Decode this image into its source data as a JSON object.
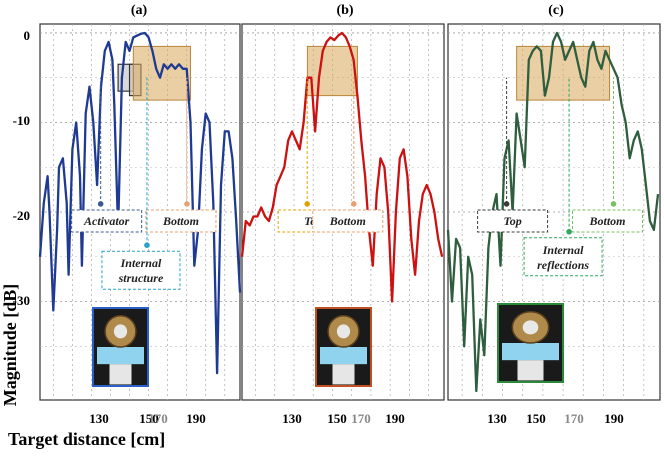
{
  "figure": {
    "ylabel": "Magnitude [dB]",
    "xlabel": "Target distance [cm]",
    "y_ticks": [
      "0",
      "-10",
      "-20",
      "-30"
    ],
    "x_ticks": [
      "130",
      "150",
      "170",
      "190"
    ]
  },
  "chart_data": [
    {
      "type": "line",
      "panel": "(a)",
      "title": "(a)",
      "xlim": [
        113,
        218
      ],
      "ylim": [
        -41,
        1
      ],
      "color": "#1f3a93",
      "grid": true,
      "x": [
        113,
        115,
        117,
        118,
        120,
        122,
        123,
        125,
        127,
        128,
        130,
        132,
        134,
        135,
        137,
        139,
        141,
        143,
        145,
        147,
        149,
        151,
        152,
        154,
        156,
        157,
        158,
        160,
        162,
        164,
        166,
        168,
        170,
        172,
        174,
        176,
        178,
        180,
        182,
        184,
        186,
        188,
        190,
        192,
        194,
        196,
        198,
        200,
        202,
        204,
        206,
        208,
        210,
        212,
        214,
        216,
        218
      ],
      "y": [
        -25,
        -19,
        -16,
        -20,
        -31,
        -22,
        -15,
        -14,
        -19,
        -27,
        -13,
        -10,
        -16,
        -26,
        -9,
        -6,
        -10,
        -17,
        -6,
        -2,
        -1,
        -3,
        -8,
        -22,
        -5,
        -3,
        -1,
        -2,
        -0.5,
        -0.3,
        -0.1,
        0,
        -0.5,
        -2,
        -4,
        -5,
        -3.5,
        -4,
        -3.5,
        -4,
        -3.5,
        -4,
        -4,
        -10,
        -26,
        -22,
        -13,
        -9,
        -10,
        -19,
        -38,
        -17,
        -11,
        -11,
        -14,
        -21,
        -29
      ],
      "shaded_regions": [
        [
          154,
          162,
          -3.5,
          -6.5
        ],
        [
          160,
          166,
          -3.5,
          -7
        ],
        [
          162,
          192,
          -1.5,
          -7.5
        ]
      ],
      "annotations": [
        {
          "label": "Activator",
          "x": 148,
          "y": -21
        },
        {
          "label": "Bottom",
          "x": 187,
          "y": -21
        },
        {
          "label": "Internal structure",
          "x": 166,
          "y": -26.5
        }
      ]
    },
    {
      "type": "line",
      "panel": "(b)",
      "title": "(b)",
      "xlim": [
        113,
        218
      ],
      "ylim": [
        -41,
        1
      ],
      "color": "#cc1111",
      "grid": true,
      "x": [
        113,
        115,
        117,
        119,
        121,
        123,
        125,
        127,
        129,
        131,
        133,
        135,
        137,
        139,
        141,
        143,
        145,
        147,
        149,
        151,
        153,
        155,
        157,
        159,
        161,
        163,
        165,
        167,
        169,
        171,
        173,
        175,
        177,
        179,
        181,
        183,
        185,
        187,
        189,
        191,
        193,
        195,
        197,
        199,
        201,
        203,
        205,
        207,
        209,
        211,
        213,
        215,
        217
      ],
      "y": [
        -25,
        -21,
        -21.5,
        -20.5,
        -20.5,
        -19.5,
        -20.5,
        -21,
        -19.5,
        -17,
        -16,
        -15,
        -12,
        -11,
        -12,
        -13,
        -10,
        -5,
        -5,
        -11,
        -5,
        -2,
        -1,
        -0.5,
        -0.8,
        -0.3,
        0,
        -0.5,
        -1.5,
        -3,
        -7,
        -12,
        -16,
        -22,
        -26,
        -18,
        -14,
        -15,
        -20,
        -30,
        -20,
        -14,
        -13,
        -16,
        -23,
        -27,
        -21,
        -18,
        -17,
        -18,
        -20,
        -23,
        -25
      ],
      "shaded_regions": [
        [
          147,
          173,
          -1.5,
          -7
        ]
      ],
      "annotations": [
        {
          "label": "Top",
          "x": 150,
          "y": -21
        },
        {
          "label": "Bottom",
          "x": 168,
          "y": -21
        }
      ]
    },
    {
      "type": "line",
      "panel": "(c)",
      "title": "(c)",
      "xlim": [
        113,
        218
      ],
      "ylim": [
        -41,
        1
      ],
      "color": "#2e5e3e",
      "grid": true,
      "x": [
        113,
        115,
        117,
        119,
        121,
        123,
        125,
        127,
        129,
        131,
        133,
        135,
        137,
        139,
        141,
        143,
        145,
        147,
        149,
        151,
        153,
        155,
        157,
        159,
        161,
        163,
        165,
        167,
        169,
        171,
        173,
        175,
        177,
        179,
        181,
        183,
        185,
        187,
        189,
        191,
        193,
        195,
        197,
        199,
        201,
        203,
        205,
        207,
        209,
        211,
        213,
        215,
        217
      ],
      "y": [
        -22,
        -30,
        -23,
        -24,
        -35,
        -25,
        -27,
        -40,
        -32,
        -36,
        -24,
        -20,
        -18,
        -26,
        -14,
        -12,
        -20,
        -9,
        -12,
        -15,
        -3,
        -2,
        -1.5,
        -2,
        -7,
        -5,
        -1,
        0,
        -1,
        -3,
        -2,
        -1,
        -3,
        -5,
        -6,
        -2,
        -1,
        -3,
        -4,
        -2,
        -3,
        -4,
        -5,
        -8,
        -10,
        -14,
        -12,
        -11,
        -13,
        -17,
        -21,
        -22,
        -18
      ],
      "shaded_regions": [
        [
          147,
          193,
          -1.5,
          -7.5
        ]
      ],
      "annotations": [
        {
          "label": "Top",
          "x": 145,
          "y": -21
        },
        {
          "label": "Internal reflections",
          "x": 170,
          "y": -25
        },
        {
          "label": "Bottom",
          "x": 192,
          "y": -21
        }
      ]
    }
  ]
}
